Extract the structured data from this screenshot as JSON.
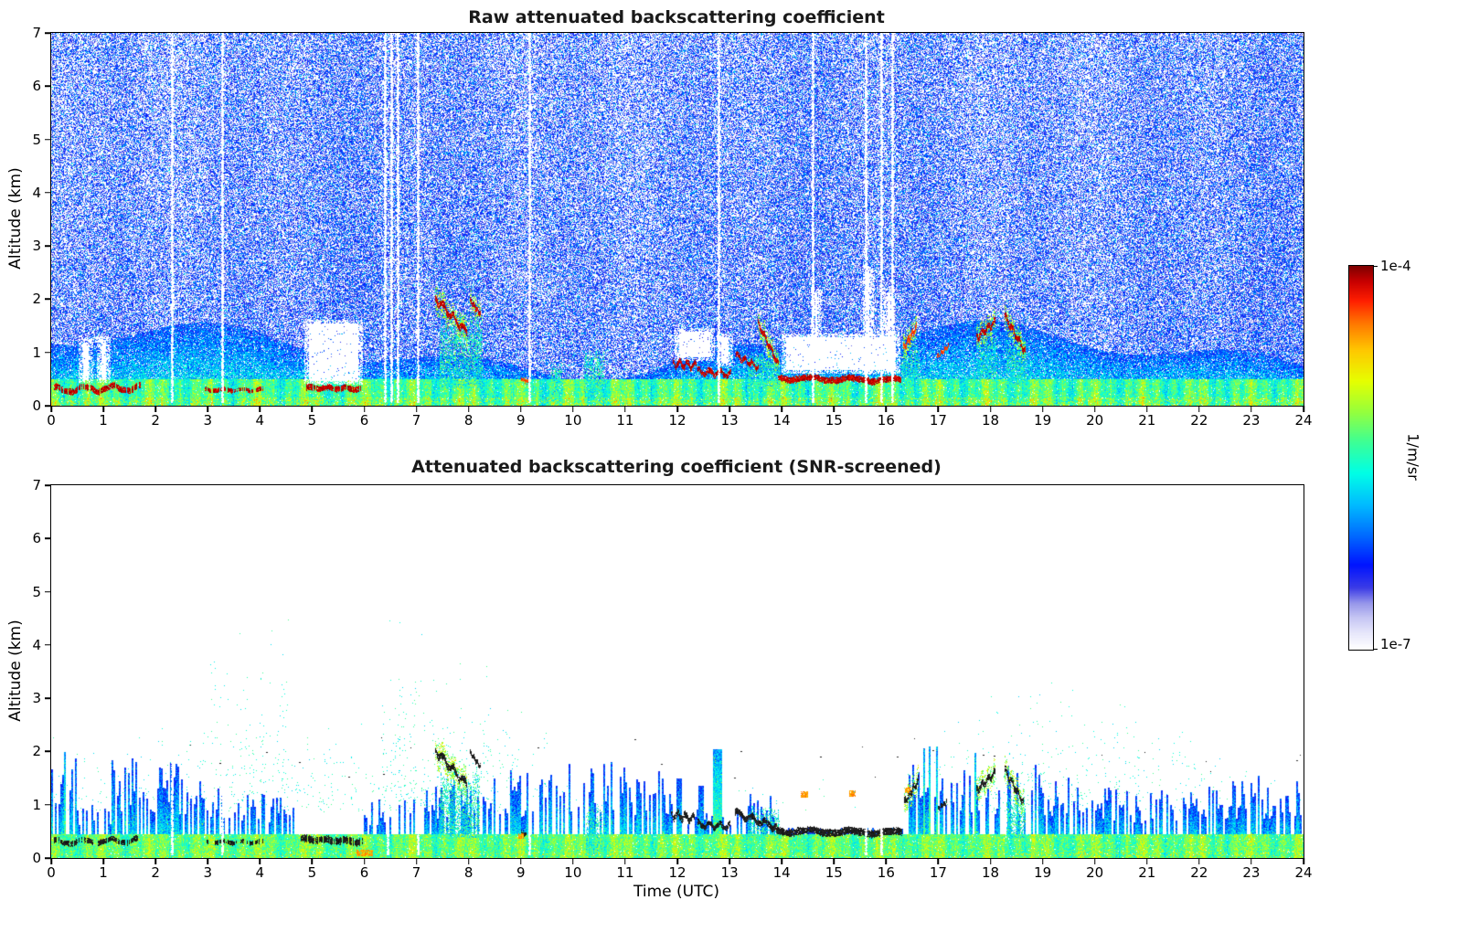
{
  "chart_data": {
    "type": "heatmap",
    "x_axis": {
      "label": "Time (UTC)",
      "range": [
        0,
        24
      ],
      "ticks": [
        0,
        1,
        2,
        3,
        4,
        5,
        6,
        7,
        8,
        9,
        10,
        11,
        12,
        13,
        14,
        15,
        16,
        17,
        18,
        19,
        20,
        21,
        22,
        23,
        24
      ]
    },
    "y_axis": {
      "label": "Altitude (km)",
      "range": [
        0,
        7
      ],
      "ticks": [
        0,
        1,
        2,
        3,
        4,
        5,
        6,
        7
      ]
    },
    "colorbar": {
      "max_label": "1e-4",
      "min_label": "1e-7",
      "units": "1/m/sr",
      "scale": "log",
      "stop_positions": [
        0,
        0.04,
        0.08,
        0.12,
        0.16,
        0.22,
        0.3,
        0.38,
        0.46,
        0.54,
        0.62,
        0.7,
        0.78,
        0.85,
        0.91,
        0.96,
        1.0
      ],
      "stops": [
        "#ffffff",
        "#e8e8fb",
        "#c8c8f4",
        "#9696ea",
        "#3c3ce6",
        "#0014ff",
        "#006eff",
        "#00beff",
        "#00ffe6",
        "#3cff96",
        "#96ff3c",
        "#e6ff00",
        "#ffc800",
        "#ff7800",
        "#ff1e00",
        "#c80000",
        "#7f0000"
      ]
    },
    "panels": [
      {
        "title": "Raw attenuated backscattering coefficient",
        "mode": "raw",
        "features": {
          "white_regions": [
            [
              0.52,
              0.78,
              0.45,
              1.25
            ],
            [
              0.88,
              1.12,
              0.45,
              1.3
            ],
            [
              4.85,
              5.95,
              0.42,
              1.62
            ],
            [
              11.95,
              12.7,
              0.85,
              1.45
            ],
            [
              12.75,
              13.05,
              0.75,
              1.35
            ],
            [
              14.0,
              16.25,
              0.62,
              1.35
            ],
            [
              14.55,
              14.75,
              0.6,
              2.2
            ],
            [
              15.55,
              15.75,
              0.6,
              2.6
            ],
            [
              15.95,
              16.15,
              0.6,
              2.2
            ]
          ],
          "white_lines": [
            2.32,
            3.27,
            6.4,
            6.52,
            6.64,
            7.02,
            9.17,
            12.78,
            14.6,
            15.6,
            15.9,
            16.12
          ],
          "trails": [
            {
              "t": [
                7.45,
                8.25
              ],
              "top": 1.6,
              "bot": 0.35,
              "p": 0.5
            },
            {
              "t": [
                13.35,
                13.95
              ],
              "top": 0.9,
              "bot": 0.38,
              "p": 0.5
            },
            {
              "t": [
                16.3,
                16.62
              ],
              "top": 1.15,
              "bot": 0.4,
              "p": 0.4
            },
            {
              "t": [
                17.78,
                18.12
              ],
              "top": 1.3,
              "bot": 0.5,
              "p": 0.35
            },
            {
              "t": [
                18.3,
                18.68
              ],
              "top": 1.1,
              "bot": 0.4,
              "p": 0.5
            },
            {
              "t": [
                10.22,
                10.58
              ],
              "top": 0.95,
              "bot": 0.1,
              "p": 0.5
            },
            {
              "t": [
                9.58,
                9.78
              ],
              "top": 0.75,
              "bot": 0.1,
              "p": 0.45
            }
          ],
          "streaks": [
            {
              "t": [
                0.05,
                1.7
              ],
              "a": [
                0.3,
                0.34
              ],
              "th": 0.1,
              "wob": 0.05,
              "color": "darkred",
              "broken": 0.15,
              "ph": 1.2
            },
            {
              "t": [
                2.95,
                4.05
              ],
              "a": [
                0.3,
                0.3
              ],
              "th": 0.07,
              "wob": 0.02,
              "color": "darkred",
              "broken": 0.35,
              "ph": 2.0
            },
            {
              "t": [
                4.88,
                5.92
              ],
              "a": [
                0.34,
                0.32
              ],
              "th": 0.1,
              "wob": 0.02,
              "color": "darkred",
              "broken": 0.08,
              "ph": 0.4
            },
            {
              "t": [
                7.35,
                7.95
              ],
              "a": [
                2.02,
                1.38
              ],
              "th": 0.11,
              "wob": 0.06,
              "color": "darkred",
              "halo": true,
              "ph": 3.1
            },
            {
              "t": [
                8.02,
                8.22
              ],
              "a": [
                1.98,
                1.72
              ],
              "th": 0.08,
              "wob": 0.03,
              "color": "darkred",
              "halo": true,
              "ph": 0.9
            },
            {
              "t": [
                9.0,
                9.12
              ],
              "a": [
                0.5,
                0.45
              ],
              "th": 0.07,
              "wob": 0.02,
              "color": "red",
              "ph": 0.5
            },
            {
              "t": [
                11.92,
                12.35
              ],
              "a": [
                0.8,
                0.75
              ],
              "th": 0.09,
              "wob": 0.06,
              "color": "darkred",
              "ph": 2.4
            },
            {
              "t": [
                12.38,
                13.02
              ],
              "a": [
                0.64,
                0.6
              ],
              "th": 0.09,
              "wob": 0.05,
              "color": "darkred",
              "ph": 1.1
            },
            {
              "t": [
                13.12,
                13.55
              ],
              "a": [
                0.95,
                0.72
              ],
              "th": 0.08,
              "wob": 0.05,
              "color": "darkred",
              "ph": 0.2
            },
            {
              "t": [
                13.55,
                13.92
              ],
              "a": [
                1.55,
                0.78
              ],
              "th": 0.1,
              "wob": 0.04,
              "color": "darkred",
              "halo": true,
              "ph": 1.7
            },
            {
              "t": [
                13.92,
                16.28
              ],
              "a": [
                0.52,
                0.48
              ],
              "th": 0.11,
              "wob": 0.03,
              "color": "darkred",
              "ph": 2.8
            },
            {
              "t": [
                16.32,
                16.58
              ],
              "a": [
                1.08,
                1.48
              ],
              "th": 0.1,
              "wob": 0.05,
              "color": "red",
              "halo": true,
              "ph": 1.4
            },
            {
              "t": [
                16.98,
                17.18
              ],
              "a": [
                0.92,
                1.12
              ],
              "th": 0.07,
              "wob": 0.03,
              "color": "red",
              "ph": 0.8
            },
            {
              "t": [
                17.72,
                18.08
              ],
              "a": [
                1.28,
                1.58
              ],
              "th": 0.1,
              "wob": 0.05,
              "color": "darkred",
              "halo": true,
              "ph": 2.2
            },
            {
              "t": [
                18.28,
                18.65
              ],
              "a": [
                1.68,
                1.02
              ],
              "th": 0.1,
              "wob": 0.05,
              "color": "darkred",
              "halo": true,
              "ph": 0.6
            }
          ]
        }
      },
      {
        "title": "Attenuated backscattering coefficient (SNR-screened)",
        "mode": "screened",
        "features": {
          "white_lines": [
            2.32,
            3.27,
            6.45,
            7.02,
            9.17,
            15.6,
            15.9
          ],
          "tall_columns": [
            [
              12.75,
              0.12,
              2.05
            ],
            [
              12.02,
              0.1,
              1.5
            ],
            [
              12.45,
              0.08,
              1.35
            ]
          ],
          "orange_marks": [
            [
              14.42,
              1.2,
              0.12
            ],
            [
              15.35,
              1.22,
              0.1
            ],
            [
              16.42,
              1.28,
              0.1
            ],
            [
              9.0,
              0.42,
              0.08
            ],
            [
              6.0,
              0.1,
              0.3
            ]
          ],
          "trails": [
            {
              "t": [
                7.45,
                8.2
              ],
              "top": 1.5,
              "bot": 0.4,
              "p": 0.45
            },
            {
              "t": [
                13.35,
                13.95
              ],
              "top": 0.85,
              "bot": 0.4,
              "p": 0.4
            },
            {
              "t": [
                18.3,
                18.65
              ],
              "top": 1.05,
              "bot": 0.4,
              "p": 0.45
            },
            {
              "t": [
                10.25,
                10.55
              ],
              "top": 0.9,
              "bot": 0.15,
              "p": 0.4
            }
          ],
          "streaks": [
            {
              "t": [
                0.05,
                1.65
              ],
              "a": [
                0.3,
                0.33
              ],
              "th": 0.09,
              "wob": 0.04,
              "color": "black",
              "broken": 0.3,
              "ph": 1.2
            },
            {
              "t": [
                2.95,
                4.05
              ],
              "a": [
                0.3,
                0.3
              ],
              "th": 0.07,
              "wob": 0.02,
              "color": "black",
              "broken": 0.45,
              "ph": 2.0
            },
            {
              "t": [
                4.78,
                5.95
              ],
              "a": [
                0.36,
                0.31
              ],
              "th": 0.12,
              "wob": 0.02,
              "color": "black",
              "broken": 0.08,
              "ph": 0.4
            },
            {
              "t": [
                7.35,
                7.95
              ],
              "a": [
                2.02,
                1.38
              ],
              "th": 0.11,
              "wob": 0.06,
              "color": "black",
              "halo": true,
              "ph": 3.1
            },
            {
              "t": [
                8.02,
                8.22
              ],
              "a": [
                1.98,
                1.72
              ],
              "th": 0.08,
              "wob": 0.03,
              "color": "black",
              "ph": 0.9
            },
            {
              "t": [
                9.0,
                9.1
              ],
              "a": [
                0.48,
                0.44
              ],
              "th": 0.07,
              "wob": 0.02,
              "color": "black",
              "ph": 0.5
            },
            {
              "t": [
                11.88,
                12.32
              ],
              "a": [
                0.82,
                0.74
              ],
              "th": 0.1,
              "wob": 0.06,
              "color": "black",
              "ph": 2.4
            },
            {
              "t": [
                12.38,
                13.0
              ],
              "a": [
                0.63,
                0.6
              ],
              "th": 0.09,
              "wob": 0.05,
              "color": "black",
              "ph": 1.1
            },
            {
              "t": [
                13.1,
                13.9
              ],
              "a": [
                0.85,
                0.58
              ],
              "th": 0.1,
              "wob": 0.05,
              "color": "black",
              "ph": 0.2
            },
            {
              "t": [
                13.9,
                16.3
              ],
              "a": [
                0.51,
                0.48
              ],
              "th": 0.12,
              "wob": 0.03,
              "color": "black",
              "ph": 2.8
            },
            {
              "t": [
                16.35,
                16.6
              ],
              "a": [
                1.05,
                1.45
              ],
              "th": 0.1,
              "wob": 0.05,
              "color": "black",
              "halo": true,
              "ph": 1.4
            },
            {
              "t": [
                17.0,
                17.15
              ],
              "a": [
                0.93,
                1.05
              ],
              "th": 0.07,
              "wob": 0.03,
              "color": "black",
              "ph": 0.8
            },
            {
              "t": [
                17.72,
                18.08
              ],
              "a": [
                1.28,
                1.6
              ],
              "th": 0.1,
              "wob": 0.05,
              "color": "black",
              "halo": true,
              "ph": 2.2
            },
            {
              "t": [
                18.28,
                18.62
              ],
              "a": [
                1.65,
                1.05
              ],
              "th": 0.1,
              "wob": 0.05,
              "color": "black",
              "halo": true,
              "ph": 0.6
            }
          ]
        }
      }
    ]
  }
}
